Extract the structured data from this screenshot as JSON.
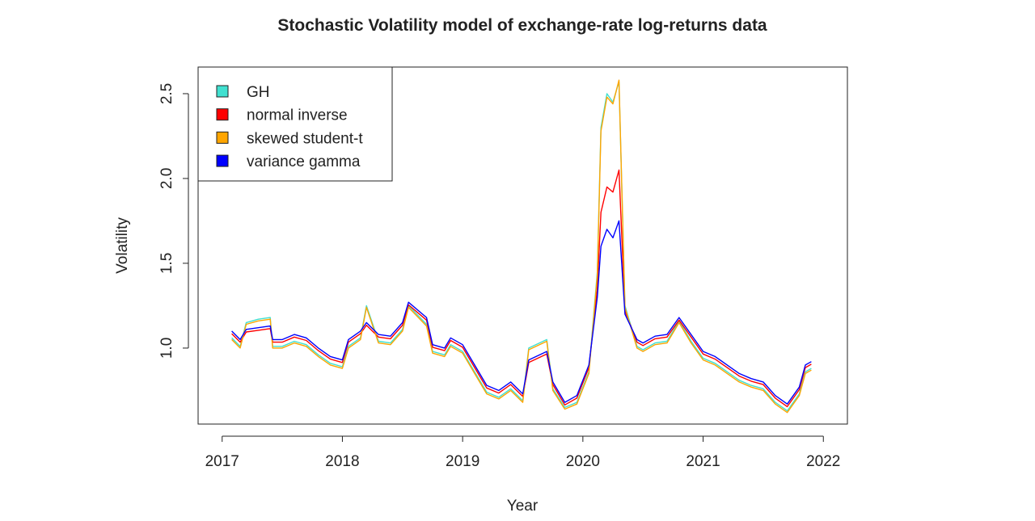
{
  "chart_data": {
    "type": "line",
    "title": "Stochastic Volatility model of exchange-rate log-returns data",
    "xlabel": "Year",
    "ylabel": "Volatility",
    "xlim": [
      2016.8,
      2022.2
    ],
    "ylim": [
      0.552,
      2.657
    ],
    "xticks": [
      "2017",
      "2018",
      "2019",
      "2020",
      "2021",
      "2022"
    ],
    "yticks": [
      "1.0",
      "1.5",
      "2.0",
      "2.5"
    ],
    "grid": false,
    "legend_position": "top-left",
    "x": [
      2017.08,
      2017.15,
      2017.2,
      2017.3,
      2017.4,
      2017.42,
      2017.5,
      2017.6,
      2017.7,
      2017.8,
      2017.9,
      2018.0,
      2018.05,
      2018.15,
      2018.2,
      2018.3,
      2018.4,
      2018.5,
      2018.55,
      2018.7,
      2018.75,
      2018.85,
      2018.9,
      2019.0,
      2019.1,
      2019.2,
      2019.3,
      2019.4,
      2019.5,
      2019.55,
      2019.7,
      2019.75,
      2019.85,
      2019.95,
      2020.05,
      2020.12,
      2020.15,
      2020.2,
      2020.25,
      2020.3,
      2020.35,
      2020.45,
      2020.5,
      2020.6,
      2020.7,
      2020.8,
      2020.9,
      2021.0,
      2021.1,
      2021.2,
      2021.3,
      2021.4,
      2021.5,
      2021.6,
      2021.7,
      2021.8,
      2021.85,
      2021.9
    ],
    "series": [
      {
        "name": "GH",
        "color": "#40E0D0",
        "values": [
          1.06,
          1.01,
          1.15,
          1.17,
          1.18,
          1.01,
          1.01,
          1.04,
          1.02,
          0.96,
          0.91,
          0.89,
          1.01,
          1.06,
          1.25,
          1.04,
          1.03,
          1.11,
          1.25,
          1.14,
          0.98,
          0.96,
          1.02,
          0.98,
          0.86,
          0.74,
          0.71,
          0.76,
          0.69,
          1.0,
          1.05,
          0.76,
          0.65,
          0.68,
          0.86,
          1.45,
          2.3,
          2.5,
          2.45,
          2.57,
          1.25,
          1.01,
          0.99,
          1.03,
          1.04,
          1.16,
          1.04,
          0.94,
          0.91,
          0.86,
          0.81,
          0.78,
          0.76,
          0.68,
          0.63,
          0.73,
          0.86,
          0.88
        ]
      },
      {
        "name": "normal inverse",
        "color": "#FF0000",
        "values": [
          1.085,
          1.035,
          1.095,
          1.105,
          1.115,
          1.035,
          1.035,
          1.065,
          1.045,
          0.985,
          0.935,
          0.915,
          1.035,
          1.085,
          1.135,
          1.065,
          1.055,
          1.135,
          1.255,
          1.165,
          1.005,
          0.985,
          1.045,
          1.005,
          0.885,
          0.765,
          0.735,
          0.785,
          0.715,
          0.915,
          0.965,
          0.785,
          0.665,
          0.705,
          0.885,
          1.35,
          1.8,
          1.95,
          1.92,
          2.05,
          1.22,
          1.035,
          1.015,
          1.055,
          1.065,
          1.165,
          1.065,
          0.965,
          0.935,
          0.885,
          0.835,
          0.805,
          0.785,
          0.705,
          0.655,
          0.755,
          0.885,
          0.905
        ]
      },
      {
        "name": "skewed student-t",
        "color": "#FFA500",
        "values": [
          1.05,
          1.0,
          1.14,
          1.16,
          1.17,
          1.0,
          1.0,
          1.03,
          1.01,
          0.95,
          0.9,
          0.88,
          1.0,
          1.05,
          1.24,
          1.03,
          1.02,
          1.1,
          1.24,
          1.13,
          0.97,
          0.95,
          1.01,
          0.97,
          0.85,
          0.73,
          0.7,
          0.75,
          0.68,
          0.99,
          1.04,
          0.75,
          0.64,
          0.67,
          0.85,
          1.43,
          2.28,
          2.48,
          2.44,
          2.58,
          1.24,
          1.0,
          0.98,
          1.02,
          1.03,
          1.15,
          1.03,
          0.93,
          0.9,
          0.85,
          0.8,
          0.77,
          0.75,
          0.67,
          0.62,
          0.72,
          0.85,
          0.87
        ]
      },
      {
        "name": "variance gamma",
        "color": "#0000FF",
        "values": [
          1.1,
          1.05,
          1.11,
          1.12,
          1.13,
          1.05,
          1.05,
          1.08,
          1.06,
          1.0,
          0.95,
          0.93,
          1.05,
          1.1,
          1.15,
          1.08,
          1.07,
          1.15,
          1.27,
          1.18,
          1.02,
          1.0,
          1.06,
          1.02,
          0.9,
          0.78,
          0.75,
          0.8,
          0.73,
          0.93,
          0.98,
          0.8,
          0.68,
          0.72,
          0.9,
          1.3,
          1.6,
          1.7,
          1.65,
          1.75,
          1.2,
          1.05,
          1.03,
          1.07,
          1.08,
          1.18,
          1.08,
          0.98,
          0.95,
          0.9,
          0.85,
          0.82,
          0.8,
          0.72,
          0.67,
          0.77,
          0.9,
          0.92
        ]
      }
    ]
  }
}
